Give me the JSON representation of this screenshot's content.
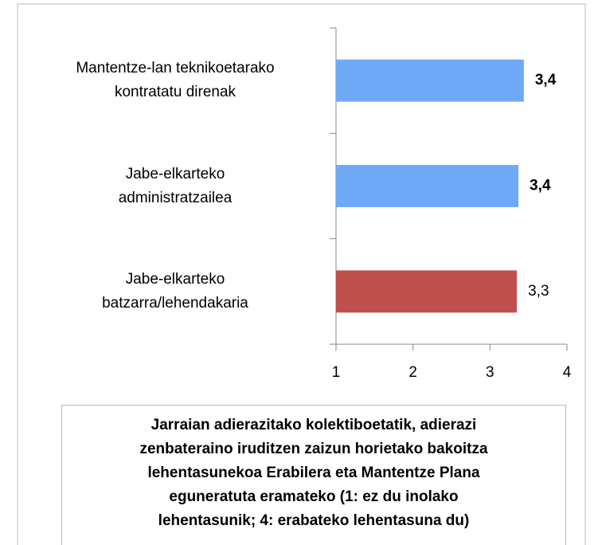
{
  "chart_data": {
    "type": "barh",
    "title": "Jarraian adierazitako kolektiboetatik, adierazi\nzenbateraino iruditzen zaizun horietako bakoitza\nlehentasunekoa Erabilera eta Mantentze Plana\neguneratuta eramateko (1: ez du inolako\nlehentasunik; 4: erabateko lehentasuna du)",
    "categories": [
      "Mantentze-lan teknikoetarako\nkontratatu direnak",
      "Jabe-elkarteko\nadministratzailea",
      "Jabe-elkarteko\nbatzarra/lehendakaria"
    ],
    "values": [
      3.44,
      3.37,
      3.35
    ],
    "value_labels": [
      "3,4",
      "3,4",
      "3,3"
    ],
    "value_label_bold": [
      true,
      true,
      false
    ],
    "colors": [
      "#6fa8f5",
      "#6fa8f5",
      "#c0504d"
    ],
    "xlim": [
      1,
      4
    ],
    "xticks": [
      1,
      2,
      3,
      4
    ]
  }
}
